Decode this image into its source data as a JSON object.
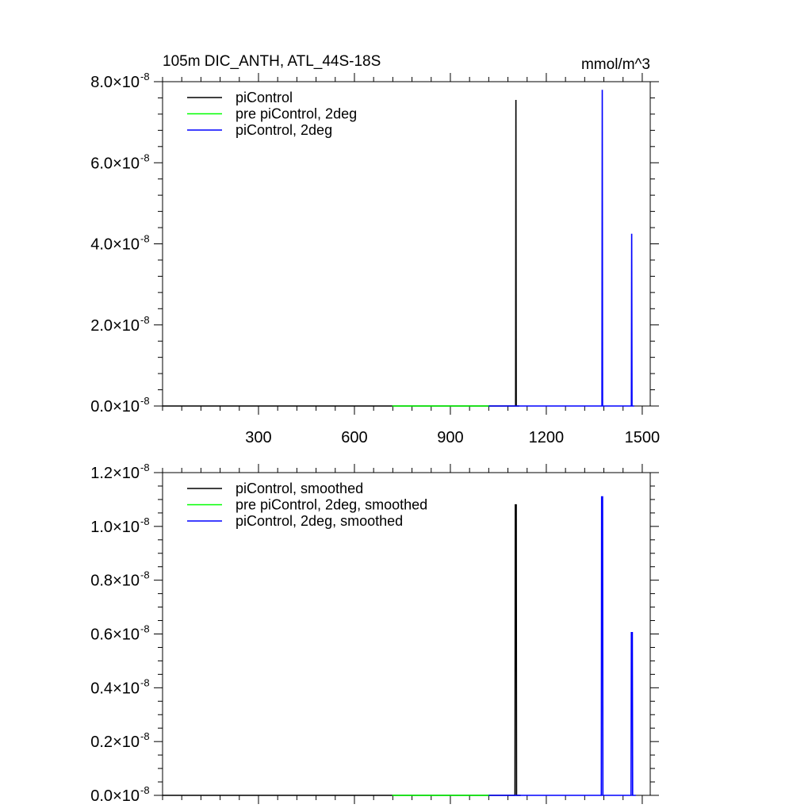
{
  "chart_data": [
    {
      "type": "line",
      "title_left": "105m DIC_ANTH, ATL_44S-18S",
      "title_right": "mmol/m^3",
      "xlabel": "",
      "ylabel": "",
      "xlim": [
        0,
        1525
      ],
      "ylim": [
        0,
        8e-08
      ],
      "xticks": [
        300,
        600,
        900,
        1200,
        1500
      ],
      "xtick_labels": [
        "300",
        "600",
        "900",
        "1200",
        "1500"
      ],
      "ytick_mantissa": [
        "0.0",
        "2.0",
        "4.0",
        "6.0",
        "8.0"
      ],
      "ytick_exponent": "-8",
      "legend_position": "top-left",
      "series": [
        {
          "name": "piControl",
          "color": "#000000",
          "x": [
            0,
            1098,
            1099,
            1100,
            1101,
            1102,
            1103,
            1104,
            1105,
            1106,
            1107,
            1108,
            1115
          ],
          "y": [
            0,
            0,
            0,
            0,
            0,
            0,
            0,
            0,
            7.55e-08,
            0,
            0,
            0,
            0
          ]
        },
        {
          "name": "pre piControl, 2deg",
          "color": "#00ff00",
          "x": [
            718,
            1025
          ],
          "y": [
            0,
            0
          ]
        },
        {
          "name": "piControl, 2deg",
          "color": "#0000ff",
          "x": [
            1020,
            1372,
            1373,
            1374,
            1375,
            1376,
            1377,
            1378,
            1460,
            1465,
            1466,
            1467,
            1468,
            1469,
            1470,
            1475
          ],
          "y": [
            0,
            0,
            0,
            0,
            7.8e-08,
            0,
            0,
            0,
            0,
            0,
            0,
            4.25e-08,
            0,
            0,
            0,
            0
          ]
        }
      ]
    },
    {
      "type": "line",
      "title_left": "",
      "title_right": "",
      "xlabel": "",
      "ylabel": "",
      "xlim": [
        0,
        1525
      ],
      "ylim": [
        0,
        1.2e-08
      ],
      "xticks": [
        300,
        600,
        900,
        1200,
        1500
      ],
      "xtick_labels": [],
      "ytick_mantissa": [
        "0.0",
        "0.2",
        "0.4",
        "0.6",
        "0.8",
        "1.0",
        "1.2"
      ],
      "ytick_exponent": "-8",
      "legend_position": "top-left",
      "series": [
        {
          "name": "piControl, smoothed",
          "color": "#000000",
          "x": [
            0,
            1100,
            1101,
            1102,
            1103,
            1104,
            1105,
            1106,
            1107,
            1108,
            1109,
            1120
          ],
          "y": [
            0,
            0,
            0,
            0,
            1.08e-08,
            1.08e-08,
            1.08e-08,
            1.08e-08,
            0,
            0,
            0,
            0
          ]
        },
        {
          "name": "pre piControl, 2deg, smoothed",
          "color": "#00ff00",
          "x": [
            718,
            1025
          ],
          "y": [
            0,
            0
          ]
        },
        {
          "name": "piControl, 2deg, smoothed",
          "color": "#0000ff",
          "x": [
            1020,
            1370,
            1371,
            1372,
            1373,
            1374,
            1375,
            1376,
            1377,
            1378,
            1379,
            1380,
            1460,
            1463,
            1464,
            1465,
            1466,
            1467,
            1468,
            1469,
            1470,
            1471,
            1472,
            1480
          ],
          "y": [
            0,
            0,
            0,
            0,
            1.11e-08,
            1.11e-08,
            1.11e-08,
            1.11e-08,
            0,
            0,
            0,
            0,
            0,
            0,
            0,
            0,
            6.05e-09,
            6.05e-09,
            6.05e-09,
            6.05e-09,
            0,
            0,
            0,
            0
          ]
        }
      ]
    }
  ]
}
